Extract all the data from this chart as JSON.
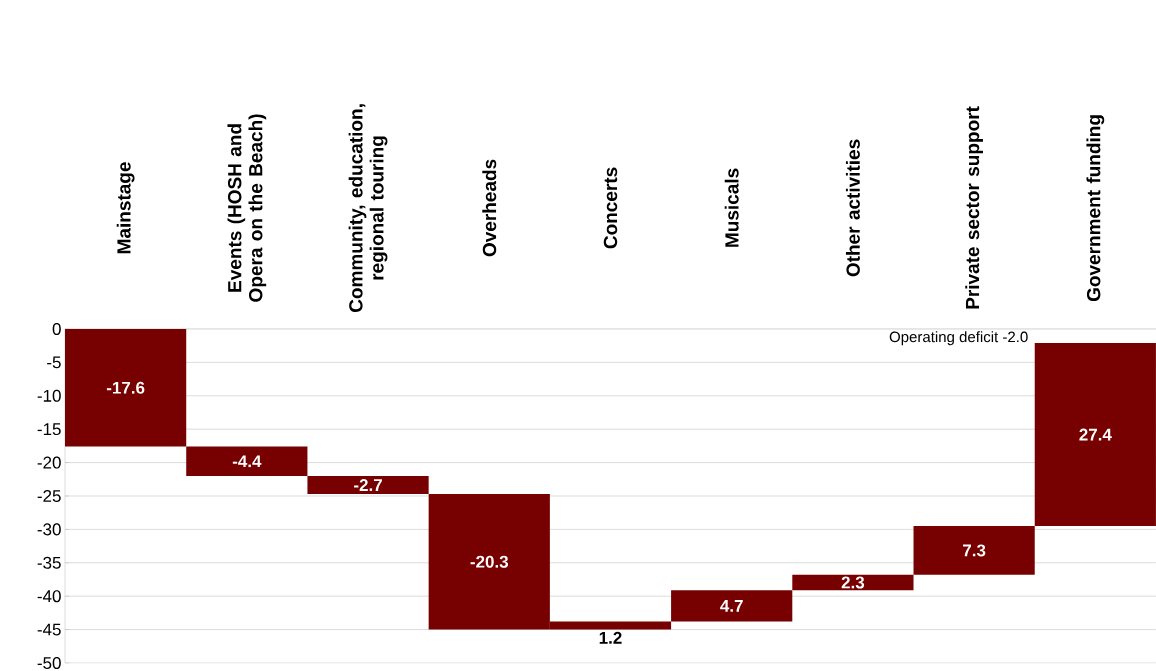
{
  "chart_data": {
    "type": "bar",
    "categories": [
      "Mainstage",
      "Events (HOSH and Opera on the Beach)",
      "Community, education, regional touring",
      "Overheads",
      "Concerts",
      "Musicals",
      "Other activities",
      "Private sector support",
      "Government funding"
    ],
    "values": [
      -17.6,
      -4.4,
      -2.7,
      -20.3,
      1.2,
      4.7,
      2.3,
      7.3,
      27.4
    ],
    "base": [
      0,
      -17.6,
      -22.0,
      -24.7,
      -45.0,
      -43.8,
      -39.1,
      -36.8,
      -29.5
    ],
    "color": "#770000",
    "data_labels": true,
    "ylim": [
      -50,
      0
    ],
    "yticks": [
      -50,
      -45,
      -40,
      -35,
      -30,
      -25,
      -20,
      -15,
      -10,
      -5,
      0
    ],
    "grid": "y",
    "annotations": [
      "Operating deficit -2.0"
    ]
  }
}
